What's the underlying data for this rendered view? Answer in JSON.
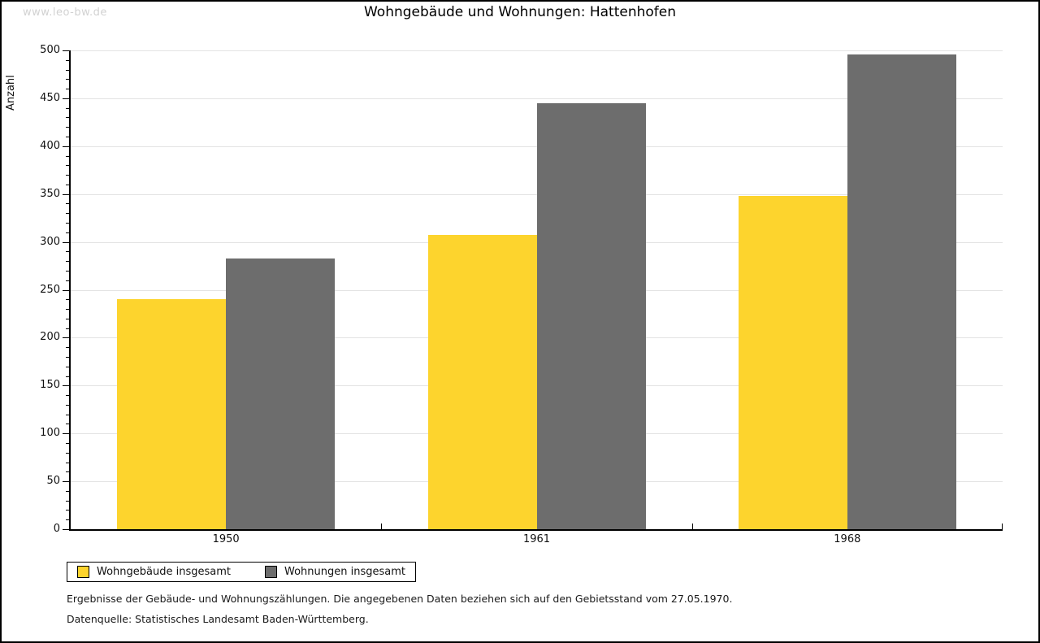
{
  "watermark": "www.leo-bw.de",
  "footnotes": [
    "Ergebnisse der Gebäude- und Wohnungszählungen. Die angegebenen Daten beziehen sich auf den Gebietsstand vom 27.05.1970.",
    "Datenquelle: Statistisches Landesamt Baden-Württemberg."
  ],
  "style": {
    "grid_color": "#e3e3e3",
    "axis_color": "#000000",
    "watermark_color": "#d2d2d2"
  },
  "chart_data": {
    "type": "bar",
    "title": "Wohngebäude und Wohnungen: Hattenhofen",
    "categories": [
      "1950",
      "1961",
      "1968"
    ],
    "series": [
      {
        "key": "wohngebaeude",
        "name": "Wohngebäude insgesamt",
        "color": "#FDD42D",
        "values": [
          240,
          307,
          348
        ]
      },
      {
        "key": "wohnungen",
        "name": "Wohnungen insgesamt",
        "color": "#6D6D6D",
        "values": [
          283,
          445,
          496
        ]
      }
    ],
    "xlabel": "",
    "ylabel": "Anzahl",
    "ylim": [
      0,
      500
    ],
    "ytick_step": 50,
    "yminor_step": 10,
    "grid": true,
    "legend_position": "bottom-left"
  }
}
